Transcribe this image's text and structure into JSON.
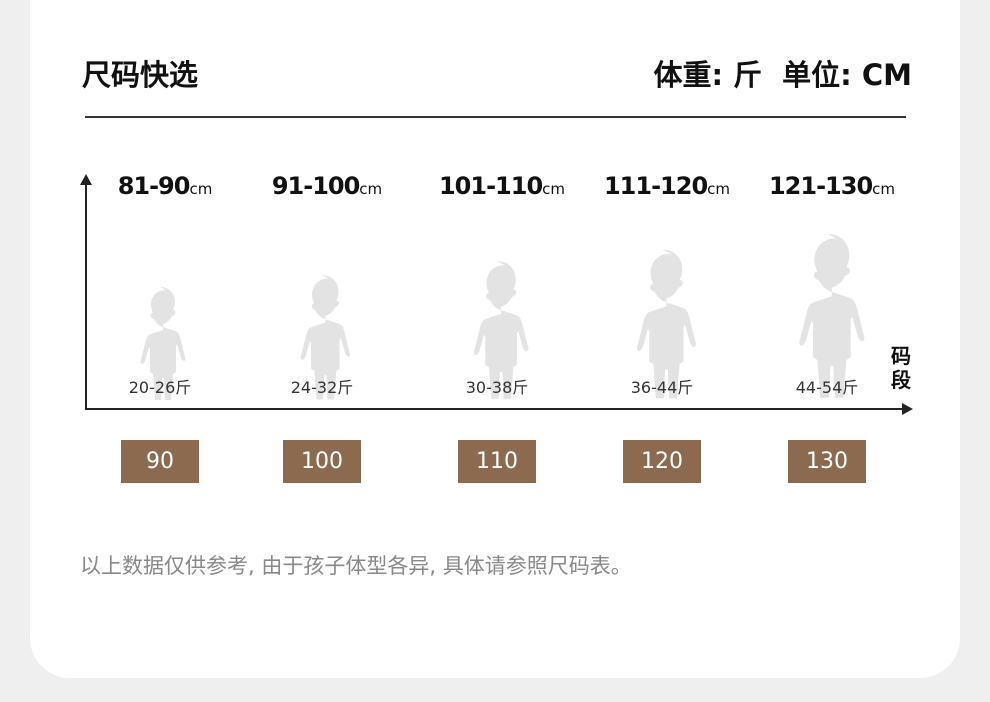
{
  "header": {
    "title": "尺码快选",
    "weight_unit": "体重: 斤",
    "length_unit": "单位: CM"
  },
  "axis": {
    "x_label": "码段"
  },
  "sizes": [
    {
      "range": "81-90",
      "unit": "cm",
      "weight": "20-26斤",
      "size": "90"
    },
    {
      "range": "91-100",
      "unit": "cm",
      "weight": "24-32斤",
      "size": "100"
    },
    {
      "range": "101-110",
      "unit": "cm",
      "weight": "30-38斤",
      "size": "110"
    },
    {
      "range": "111-120",
      "unit": "cm",
      "weight": "36-44斤",
      "size": "120"
    },
    {
      "range": "121-130",
      "unit": "cm",
      "weight": "44-54斤",
      "size": "130"
    }
  ],
  "note": "以上数据仅供参考, 由于孩子体型各异, 具体请参照尺码表。",
  "colors": {
    "size_box": "#8c6a4f",
    "silhouette": "#e3e3e3",
    "background": "#efefef"
  }
}
